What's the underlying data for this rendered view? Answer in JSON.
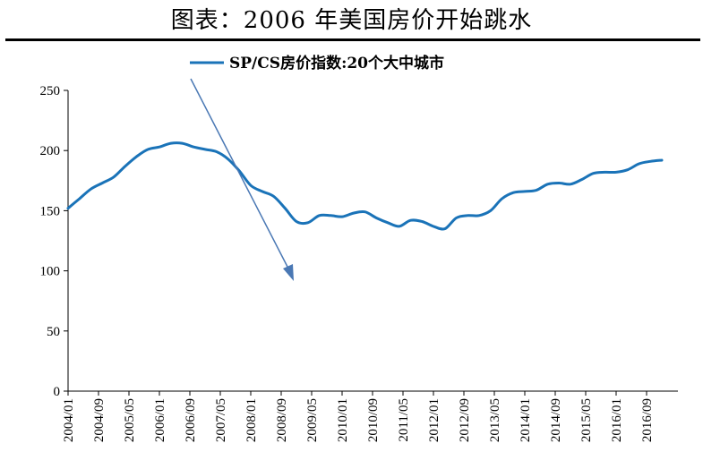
{
  "title": "图表：2006 年美国房价开始跳水",
  "colors": {
    "series": "#1a73b8",
    "arrow": "#4a78b4",
    "axis": "#000000"
  },
  "chart_data": {
    "type": "line",
    "title": "图表：2006 年美国房价开始跳水",
    "xlabel": "",
    "ylabel": "",
    "ylim": [
      0,
      250
    ],
    "yticks": [
      0,
      50,
      100,
      150,
      200,
      250
    ],
    "xtick_labels": [
      "2004/01",
      "2004/09",
      "2005/05",
      "2006/01",
      "2006/09",
      "2007/05",
      "2008/01",
      "2008/09",
      "2009/05",
      "2010/01",
      "2010/09",
      "2011/05",
      "2012/01",
      "2012/09",
      "2013/05",
      "2014/01",
      "2014/09",
      "2015/05",
      "2016/01",
      "2016/09"
    ],
    "grid": false,
    "legend": "top-center",
    "x_start": "2004/01",
    "series": [
      {
        "name": "SP/CS房价指数:20个大中城市",
        "x": [
          "2004/01",
          "2004/04",
          "2004/07",
          "2004/10",
          "2005/01",
          "2005/04",
          "2005/07",
          "2005/10",
          "2006/01",
          "2006/04",
          "2006/07",
          "2006/10",
          "2007/01",
          "2007/04",
          "2007/07",
          "2007/10",
          "2008/01",
          "2008/04",
          "2008/07",
          "2008/10",
          "2009/01",
          "2009/04",
          "2009/07",
          "2009/10",
          "2010/01",
          "2010/04",
          "2010/07",
          "2010/10",
          "2011/01",
          "2011/04",
          "2011/07",
          "2011/10",
          "2012/01",
          "2012/04",
          "2012/07",
          "2012/10",
          "2013/01",
          "2013/04",
          "2013/07",
          "2013/10",
          "2014/01",
          "2014/04",
          "2014/07",
          "2014/10",
          "2015/01",
          "2015/04",
          "2015/07",
          "2015/10",
          "2016/01",
          "2016/04",
          "2016/07",
          "2016/10",
          "2017/01"
        ],
        "values": [
          152,
          160,
          168,
          173,
          178,
          187,
          195,
          201,
          203,
          206,
          206,
          203,
          201,
          199,
          193,
          183,
          171,
          166,
          162,
          152,
          141,
          140,
          146,
          146,
          145,
          148,
          149,
          144,
          140,
          137,
          142,
          141,
          137,
          135,
          144,
          146,
          146,
          150,
          160,
          165,
          166,
          167,
          172,
          173,
          172,
          176,
          181,
          182,
          182,
          184,
          189,
          191,
          192
        ]
      }
    ]
  }
}
